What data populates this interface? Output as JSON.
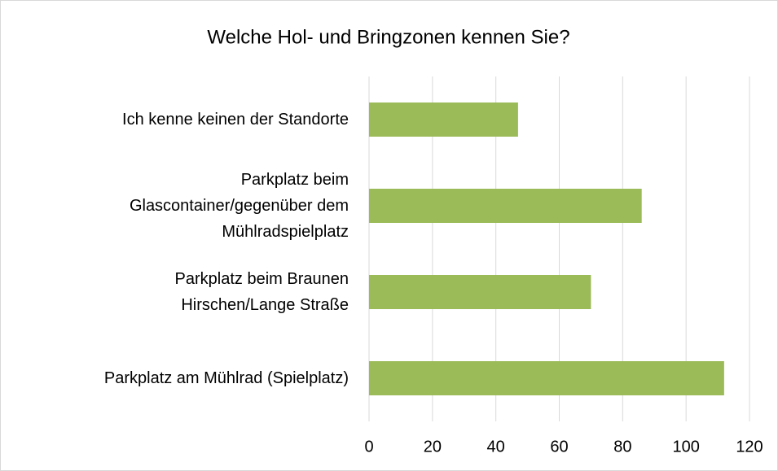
{
  "chart_data": {
    "type": "bar",
    "orientation": "horizontal",
    "title": "Welche Hol- und Bringzonen kennen Sie?",
    "categories": [
      "Ich kenne keinen der Standorte",
      "Parkplatz beim\nGlascontainer/gegenüber dem\nMühlradspielplatz",
      "Parkplatz beim Braunen\nHirschen/Lange Straße",
      "Parkplatz am Mühlrad (Spielplatz)"
    ],
    "values": [
      47,
      86,
      70,
      112
    ],
    "color": "#9bbb59",
    "xlim": [
      0,
      120
    ],
    "xticks": [
      0,
      20,
      40,
      60,
      80,
      100,
      120
    ],
    "grid": true
  }
}
